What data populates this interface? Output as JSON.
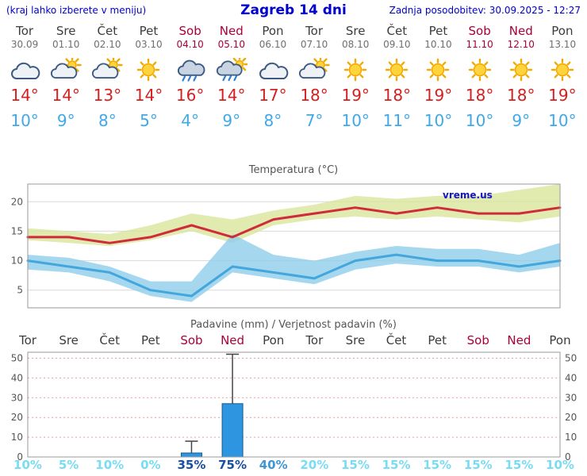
{
  "header": {
    "hint": "(kraj lahko izberete v meniju)",
    "title": "Zagreb 14 dni",
    "updated": "Zadnja posodobitev: 30.09.2025 - 12:27"
  },
  "colors": {
    "header_blue": "#0000cc",
    "weekend_red": "#a8003c",
    "high_temp_red": "#d32020",
    "low_temp_blue": "#3fa8e8"
  },
  "forecast": {
    "days": [
      {
        "name": "Tor",
        "date": "30.09",
        "icon": "cloudy",
        "high": "14°",
        "low": "10°",
        "weekend": false
      },
      {
        "name": "Sre",
        "date": "01.10",
        "icon": "partly-cloudy",
        "high": "14°",
        "low": "9°",
        "weekend": false
      },
      {
        "name": "Čet",
        "date": "02.10",
        "icon": "partly-cloudy",
        "high": "13°",
        "low": "8°",
        "weekend": false
      },
      {
        "name": "Pet",
        "date": "03.10",
        "icon": "sunny",
        "high": "14°",
        "low": "5°",
        "weekend": false
      },
      {
        "name": "Sob",
        "date": "04.10",
        "icon": "rain",
        "high": "16°",
        "low": "4°",
        "weekend": true
      },
      {
        "name": "Ned",
        "date": "05.10",
        "icon": "rain-sun",
        "high": "14°",
        "low": "9°",
        "weekend": true
      },
      {
        "name": "Pon",
        "date": "06.10",
        "icon": "cloudy",
        "high": "17°",
        "low": "8°",
        "weekend": false
      },
      {
        "name": "Tor",
        "date": "07.10",
        "icon": "partly-cloudy",
        "high": "18°",
        "low": "7°",
        "weekend": false
      },
      {
        "name": "Sre",
        "date": "08.10",
        "icon": "sunny",
        "high": "19°",
        "low": "10°",
        "weekend": false
      },
      {
        "name": "Čet",
        "date": "09.10",
        "icon": "sunny",
        "high": "18°",
        "low": "11°",
        "weekend": false
      },
      {
        "name": "Pet",
        "date": "10.10",
        "icon": "sunny",
        "high": "19°",
        "low": "10°",
        "weekend": false
      },
      {
        "name": "Sob",
        "date": "11.10",
        "icon": "sunny",
        "high": "18°",
        "low": "10°",
        "weekend": true
      },
      {
        "name": "Ned",
        "date": "12.10",
        "icon": "sunny",
        "high": "18°",
        "low": "9°",
        "weekend": true
      },
      {
        "name": "Pon",
        "date": "13.10",
        "icon": "sunny",
        "high": "19°",
        "low": "10°",
        "weekend": false
      }
    ]
  },
  "chart_data": [
    {
      "type": "line",
      "title": "Temperatura (°C)",
      "watermark": "vreme.us",
      "x_labels": [
        "Tor 30.09",
        "Sre 01.10",
        "Čet 02.10",
        "Pet 03.10",
        "Sob 04.10",
        "Ned 05.10",
        "Pon 06.10",
        "Tor 07.10",
        "Sre 08.10",
        "Čet 09.10",
        "Pet 10.10",
        "Sob 11.10",
        "Ned 12.10",
        "Pon 13.10"
      ],
      "ylim": [
        2,
        23
      ],
      "yticks": [
        5,
        10,
        15,
        20
      ],
      "grid": "horizontal",
      "series": [
        {
          "name": "max_temperature",
          "color": "#cf2b3a",
          "values": [
            14,
            14,
            13,
            14,
            16,
            14,
            17,
            18,
            19,
            18,
            19,
            18,
            18,
            19
          ]
        },
        {
          "name": "min_temperature",
          "color": "#43a6dc",
          "values": [
            10,
            9,
            8,
            5,
            4,
            9,
            8,
            7,
            10,
            11,
            10,
            10,
            9,
            10
          ]
        }
      ],
      "bands": [
        {
          "name": "max_temperature_range",
          "color": "#d9e59b",
          "upper": [
            15.5,
            15.0,
            14.5,
            16.0,
            18.0,
            17.0,
            18.5,
            19.5,
            21.0,
            20.5,
            21.0,
            21.0,
            22.0,
            23.0
          ],
          "lower": [
            13.5,
            13.0,
            12.5,
            13.5,
            15.0,
            13.0,
            16.0,
            17.0,
            17.5,
            17.0,
            17.5,
            17.0,
            16.5,
            17.5
          ]
        },
        {
          "name": "min_temperature_range",
          "color": "#8ecdea",
          "upper": [
            11.0,
            10.5,
            9.0,
            6.5,
            6.5,
            14.5,
            11.0,
            10.0,
            11.5,
            12.5,
            12.0,
            12.0,
            11.0,
            13.0
          ],
          "lower": [
            8.5,
            8.0,
            6.5,
            4.0,
            3.0,
            8.0,
            7.0,
            6.0,
            8.5,
            9.5,
            9.0,
            9.0,
            8.0,
            9.0
          ]
        }
      ]
    },
    {
      "type": "bar",
      "title": "Padavine (mm) / Verjetnost padavin (%)",
      "categories": [
        "Tor",
        "Sre",
        "Čet",
        "Pet",
        "Sob",
        "Ned",
        "Pon",
        "Tor",
        "Sre",
        "Čet",
        "Pet",
        "Sob",
        "Ned",
        "Pon"
      ],
      "weekend_flags": [
        false,
        false,
        false,
        false,
        true,
        true,
        false,
        false,
        false,
        false,
        false,
        true,
        true,
        false
      ],
      "precipitation_mm": [
        0,
        0,
        0,
        0,
        2,
        27,
        0,
        0,
        0,
        0,
        0,
        0,
        0,
        0
      ],
      "precipitation_max_mm": [
        0,
        0,
        0,
        0,
        8,
        52,
        0,
        0,
        0,
        0,
        0,
        0,
        0,
        0
      ],
      "probability_percent": [
        "10%",
        "5%",
        "10%",
        "0%",
        "35%",
        "75%",
        "40%",
        "20%",
        "15%",
        "15%",
        "15%",
        "15%",
        "15%",
        "10%"
      ],
      "probability_colors": [
        "#79dcf2",
        "#79dcf2",
        "#79dcf2",
        "#79dcf2",
        "#17509e",
        "#17509e",
        "#3e97d4",
        "#79dcf2",
        "#79dcf2",
        "#79dcf2",
        "#79dcf2",
        "#79dcf2",
        "#79dcf2",
        "#79dcf2"
      ],
      "ylim": [
        0,
        53
      ],
      "yticks": [
        0,
        10,
        20,
        30,
        40,
        50
      ],
      "bar_color": "#2e96e0",
      "grid": "horizontal-dotted-red"
    }
  ]
}
